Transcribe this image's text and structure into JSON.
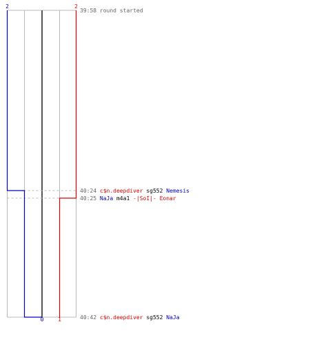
{
  "colors": {
    "team_blue": "#0000bb",
    "team_red": "#dd0000",
    "grid": "#b8b8b8",
    "center": "#555555",
    "guide": "#bbbbbb",
    "time": "#666666",
    "text": "#000000"
  },
  "chart_data": {
    "type": "line",
    "title": "",
    "xlabel": "",
    "ylabel": "",
    "teams": [
      {
        "name": "blue",
        "color": "#0000bb",
        "start_count": "2",
        "end_count": "0",
        "steps": [
          {
            "at": "39:58",
            "count": 2
          },
          {
            "at": "40:24",
            "count": 1
          },
          {
            "at": "40:42",
            "count": 0
          }
        ]
      },
      {
        "name": "red",
        "color": "#dd0000",
        "start_count": "2",
        "end_count": "1",
        "steps": [
          {
            "at": "39:58",
            "count": 2
          },
          {
            "at": "40:25",
            "count": 1
          }
        ]
      }
    ],
    "events": [
      {
        "time": "39:58",
        "segments": [
          {
            "text": "round started",
            "color": "#666666"
          }
        ]
      },
      {
        "time": "40:24",
        "segments": [
          {
            "text": "c$n.deepdiver",
            "color": "#dd0000"
          },
          {
            "text": " sg552 ",
            "color": "#000000"
          },
          {
            "text": "Nemesis",
            "color": "#0000bb"
          }
        ]
      },
      {
        "time": "40:25",
        "segments": [
          {
            "text": "NaJa",
            "color": "#0000bb"
          },
          {
            "text": " m4a1 ",
            "color": "#000000"
          },
          {
            "text": "-|SoI|- Eonar",
            "color": "#dd0000"
          }
        ]
      },
      {
        "time": "40:42",
        "segments": [
          {
            "text": "c$n.deepdiver",
            "color": "#dd0000"
          },
          {
            "text": " sg552 ",
            "color": "#000000"
          },
          {
            "text": "NaJa",
            "color": "#0000bb"
          }
        ]
      }
    ]
  }
}
